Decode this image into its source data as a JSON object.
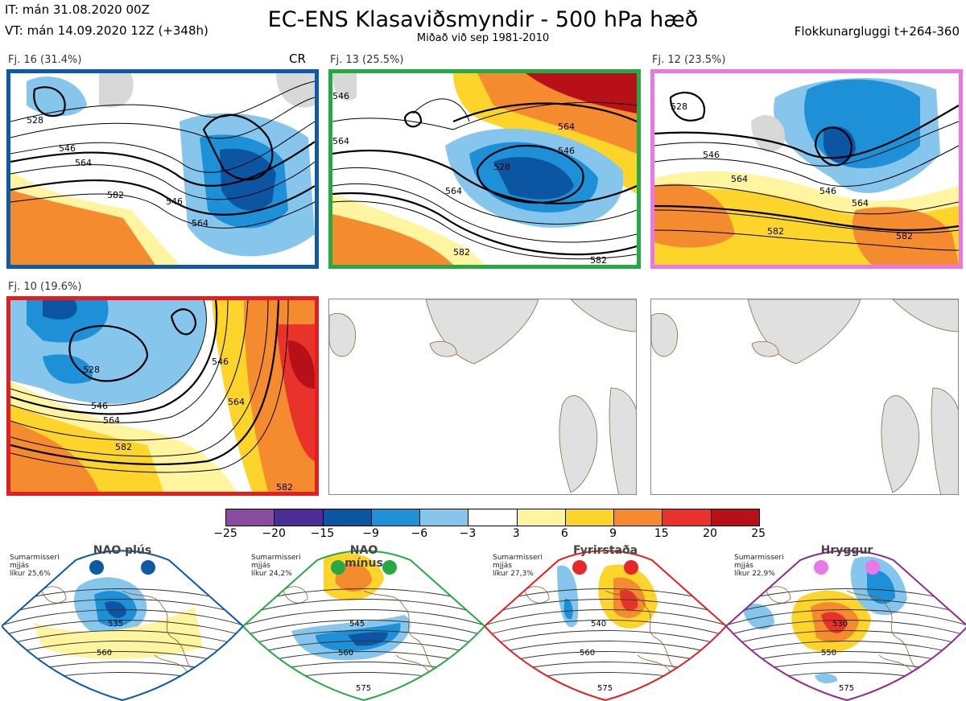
{
  "header": {
    "init_time": "IT: mán 31.08.2020 00Z",
    "valid_time": "VT: mán 14.09.2020 12Z  (+348h)",
    "title": "EC-ENS Klasaviðsmyndir - 500 hPa hæð",
    "subtitle": "Miðað við sep 1981-2010",
    "window": "Flokkunargluggi t+264-360"
  },
  "panels": [
    {
      "label": "Fj. 16 (31.4%)",
      "tag": "CR",
      "border": "#0b5aa3",
      "contours": [
        "546",
        "564",
        "582",
        "528",
        "546",
        "564"
      ]
    },
    {
      "label": "Fj. 13 (25.5%)",
      "border": "#26a944",
      "contours": [
        "546",
        "564",
        "582",
        "528",
        "546",
        "564",
        "564",
        "582"
      ]
    },
    {
      "label": "Fj. 12 (23.5%)",
      "border": "#e878e8",
      "contours": [
        "546",
        "564",
        "582",
        "528",
        "546",
        "564",
        "582"
      ]
    },
    {
      "label": "Fj. 10 (19.6%)",
      "border": "#e02020",
      "contours": [
        "528",
        "546",
        "564",
        "582",
        "546",
        "564",
        "582"
      ]
    }
  ],
  "colorbar": {
    "colors": [
      "#8a4a9e",
      "#4a2e96",
      "#0b55a3",
      "#1e90d8",
      "#87c6ec",
      "#ffffff",
      "#fff4a0",
      "#fdd52a",
      "#f48b2e",
      "#e8322a",
      "#b81018"
    ],
    "ticks": [
      "−25",
      "−20",
      "−15",
      "−9",
      "−6",
      "−3",
      "3",
      "6",
      "9",
      "15",
      "20",
      "25"
    ]
  },
  "regimes": [
    {
      "name": "NAO plús",
      "note": [
        "Sumarmisseri",
        "mjjás",
        "líkur 25,6%"
      ],
      "color": "#0b5aa3",
      "dots": "#0b5aa3",
      "contours": [
        "535",
        "560"
      ]
    },
    {
      "name": "NAO mínus",
      "note": [
        "Sumarmisseri",
        "mjjás",
        "líkur 24,2%"
      ],
      "color": "#26a944",
      "dots": "#26a944",
      "contours": [
        "545",
        "560",
        "575"
      ]
    },
    {
      "name": "Fyrirstaða",
      "note": [
        "Sumarmisseri",
        "mjjás",
        "líkur 27,3%"
      ],
      "color": "#e02020",
      "dots": "#e82828",
      "contours": [
        "540",
        "560",
        "575"
      ]
    },
    {
      "name": "Hryggur",
      "note": [
        "Sumarmisseri",
        "mjjás",
        "líkur 22,9%"
      ],
      "color": "#8e2a92",
      "dots": "#e878e8",
      "contours": [
        "530",
        "550",
        "575"
      ]
    }
  ]
}
